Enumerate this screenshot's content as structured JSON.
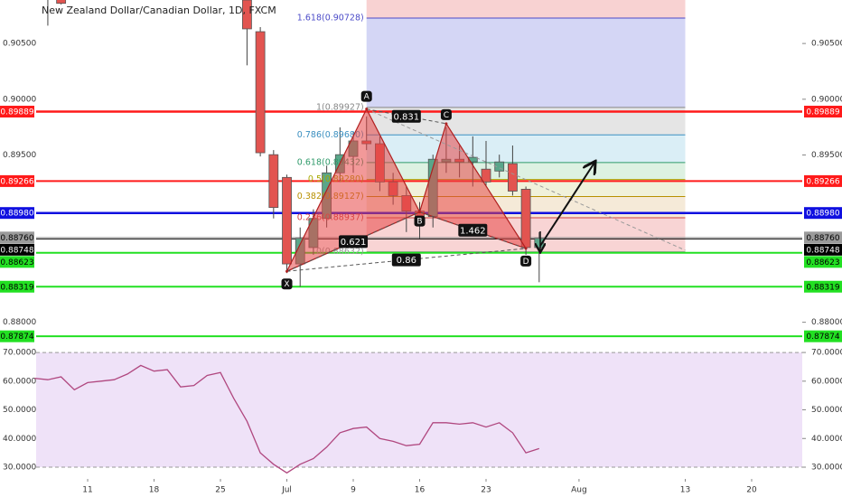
{
  "chart_data": [
    {
      "type": "candlestick",
      "title": "New Zealand Dollar/Canadian Dollar, 1D, FXCM",
      "xlim": [
        -3.88,
        53.81
      ],
      "ylim": [
        0.8777,
        0.9089
      ],
      "yticks": [
        {
          "value": 0.905,
          "label": "0.90500"
        },
        {
          "value": 0.9,
          "label": "0.90000"
        },
        {
          "value": 0.895,
          "label": "0.89500"
        },
        {
          "value": 0.88,
          "label": "0.88000"
        }
      ],
      "up_color": "#5aa68a",
      "down_color": "#e25450",
      "x": [
        -3,
        -2,
        12,
        13,
        14,
        15,
        16,
        17,
        18,
        19,
        20,
        21,
        22,
        23,
        24,
        25,
        26,
        27,
        28,
        29,
        30,
        31,
        32,
        33,
        34
      ],
      "open": [
        0.9095,
        0.9092,
        0.9089,
        0.90606,
        0.89503,
        0.89299,
        0.88523,
        0.8867,
        0.88931,
        0.8934,
        0.89487,
        0.89626,
        0.89601,
        0.89258,
        0.89136,
        0.88997,
        0.88948,
        0.89438,
        0.89462,
        0.89438,
        0.89373,
        0.89356,
        0.89422,
        0.89193,
        0.8867
      ],
      "high": [
        0.9098,
        0.9095,
        0.9097,
        0.90647,
        0.89544,
        0.89324,
        0.8885,
        0.89013,
        0.89405,
        0.89748,
        0.89708,
        0.89846,
        0.89667,
        0.8934,
        0.89217,
        0.89078,
        0.89503,
        0.89748,
        0.89585,
        0.89667,
        0.89626,
        0.89503,
        0.89585,
        0.89217,
        0.88809
      ],
      "low": [
        0.9066,
        0.9085,
        0.90304,
        0.89487,
        0.88931,
        0.88441,
        0.88319,
        0.88605,
        0.8885,
        0.89258,
        0.8934,
        0.89544,
        0.89176,
        0.89054,
        0.88809,
        0.88752,
        0.8885,
        0.8934,
        0.89299,
        0.89217,
        0.89217,
        0.89299,
        0.89136,
        0.88605,
        0.88359
      ],
      "close": [
        0.9092,
        0.9086,
        0.90631,
        0.8952,
        0.89029,
        0.88523,
        0.88752,
        0.88931,
        0.8934,
        0.89503,
        0.89626,
        0.89601,
        0.89258,
        0.89136,
        0.88997,
        0.88931,
        0.89462,
        0.89462,
        0.89438,
        0.89479,
        0.89258,
        0.89438,
        0.89176,
        0.8867,
        0.88752
      ],
      "levels": [
        {
          "value": 0.89889,
          "label": "0.89889",
          "color": "#ff1a1a",
          "text_color": "#ffffff",
          "width": 2.5
        },
        {
          "value": 0.89266,
          "label": "0.89266",
          "color": "#ff1a1a",
          "text_color": "#ffffff",
          "width": 2
        },
        {
          "value": 0.8898,
          "label": "0.88980",
          "color": "#1010e0",
          "text_color": "#ffffff",
          "width": 2.5
        },
        {
          "value": 0.8876,
          "label": "0.88760",
          "color": "#9a9a9a",
          "text_color": "#000000",
          "width": 1
        },
        {
          "value": 0.88748,
          "label": "0.88748",
          "color": "#000000",
          "text_color": "#ffffff",
          "width": 1
        },
        {
          "value": 0.88623,
          "label": "0.88623",
          "color": "#22e022",
          "text_color": "#000000",
          "width": 2
        },
        {
          "value": 0.88319,
          "label": "0.88319",
          "color": "#22e022",
          "text_color": "#000000",
          "width": 2
        },
        {
          "value": 0.87874,
          "label": "0.87874",
          "color": "#22e022",
          "text_color": "#000000",
          "width": 2
        }
      ],
      "fib": {
        "x": [
          21,
          45
        ],
        "levels": [
          {
            "value": 0.90728,
            "label": "1.618(0.90728)",
            "color": "#4b4bc8",
            "fill": "#cfd2f4"
          },
          {
            "value": 0.89927,
            "label": "1(0.89927)",
            "color": "#888888",
            "fill": "#e2e2e2"
          },
          {
            "value": 0.8968,
            "label": "0.786(0.89680)",
            "color": "#3a8fc0",
            "fill": "#d6ecf5"
          },
          {
            "value": 0.89432,
            "label": "0.618(0.89432)",
            "color": "#2f9a6a",
            "fill": "#d9f0df"
          },
          {
            "value": 0.8928,
            "label": "0.5(0.89280)",
            "color": "#a8a800",
            "fill": "#eef0d6"
          },
          {
            "value": 0.89127,
            "label": "0.382(0.89127)",
            "color": "#b89000",
            "fill": "#f4e8d4"
          },
          {
            "value": 0.88937,
            "label": "0.236(0.88937)",
            "color": "#d04040",
            "fill": "#f7cfcf"
          },
          {
            "value": 0.88632,
            "label": "0(0.88632)",
            "color": "#999999"
          }
        ]
      },
      "pattern": {
        "points": [
          {
            "label": "X",
            "x": 15,
            "value": 0.88457
          },
          {
            "label": "A",
            "x": 21,
            "value": 0.89912
          },
          {
            "label": "B",
            "x": 25,
            "value": 0.88989
          },
          {
            "label": "C",
            "x": 27,
            "value": 0.89781
          },
          {
            "label": "D",
            "x": 33,
            "value": 0.88662
          }
        ],
        "ratios": [
          0.621,
          0.831,
          1.462,
          0.86
        ]
      }
    },
    {
      "type": "line",
      "xlim": [
        -3.88,
        53.81
      ],
      "ylim": [
        25.9,
        71.6
      ],
      "band": [
        30,
        70
      ],
      "color": "#b0477f",
      "yticks": [
        {
          "value": 70,
          "label": "70.0000"
        },
        {
          "value": 60,
          "label": "60.0000"
        },
        {
          "value": 50,
          "label": "50.0000"
        },
        {
          "value": 40,
          "label": "40.0000"
        },
        {
          "value": 30,
          "label": "30.0000"
        }
      ],
      "xticks": [
        {
          "value": 0,
          "label": "11"
        },
        {
          "value": 5,
          "label": "18"
        },
        {
          "value": 10,
          "label": "25"
        },
        {
          "value": 15,
          "label": "Jul"
        },
        {
          "value": 20,
          "label": "9"
        },
        {
          "value": 25,
          "label": "16"
        },
        {
          "value": 30,
          "label": "23"
        },
        {
          "value": 37,
          "label": "Aug"
        },
        {
          "value": 45,
          "label": "13"
        },
        {
          "value": 50,
          "label": "20"
        }
      ],
      "x": [
        -4,
        -3,
        -2,
        -1,
        0,
        1,
        2,
        3,
        4,
        5,
        6,
        7,
        8,
        9,
        10,
        11,
        12,
        13,
        14,
        15,
        16,
        17,
        18,
        19,
        20,
        21,
        22,
        23,
        24,
        25,
        26,
        27,
        28,
        29,
        30,
        31,
        32,
        33,
        34
      ],
      "values": [
        61,
        60.5,
        61.5,
        57,
        59.5,
        60,
        60.5,
        62.5,
        65.5,
        63.5,
        64,
        58,
        58.5,
        62,
        63,
        54,
        46,
        35,
        31,
        28,
        31,
        33,
        37,
        42,
        43.5,
        44,
        40,
        39,
        37.5,
        38,
        45.5,
        45.5,
        45,
        45.5,
        44,
        45.5,
        42,
        35,
        36.5
      ]
    }
  ]
}
